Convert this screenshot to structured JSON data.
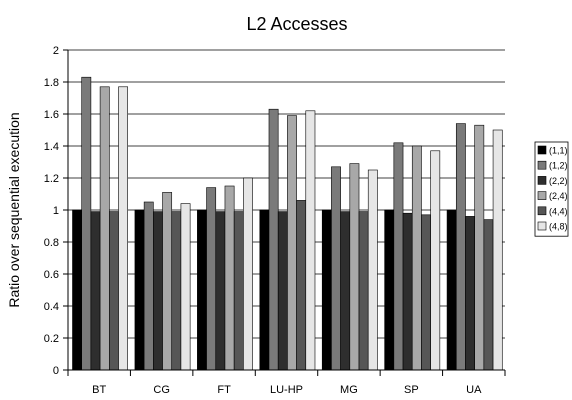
{
  "chart_data": {
    "type": "bar",
    "title": "L2 Accesses",
    "xlabel": "",
    "ylabel": "Ratio over sequential execution",
    "ylim": [
      0,
      2
    ],
    "yticks": [
      "0",
      "0.2",
      "0.4",
      "0.6",
      "0.8",
      "1",
      "1.2",
      "1.4",
      "1.6",
      "1.8",
      "2"
    ],
    "grid": true,
    "legend_position": "right",
    "categories": [
      "BT",
      "CG",
      "FT",
      "LU-HP",
      "MG",
      "SP",
      "UA"
    ],
    "series": [
      {
        "name": "(1,1)",
        "color": "#000000",
        "values": [
          1.0,
          1.0,
          1.0,
          1.0,
          1.0,
          1.0,
          1.0
        ]
      },
      {
        "name": "(1,2)",
        "color": "#7a7a7a",
        "values": [
          1.83,
          1.05,
          1.14,
          1.63,
          1.27,
          1.42,
          1.54
        ]
      },
      {
        "name": "(2,2)",
        "color": "#2e2e2e",
        "values": [
          0.99,
          0.99,
          0.99,
          0.99,
          0.99,
          0.98,
          0.96
        ]
      },
      {
        "name": "(2,4)",
        "color": "#a8a8a8",
        "values": [
          1.77,
          1.11,
          1.15,
          1.59,
          1.29,
          1.4,
          1.53
        ]
      },
      {
        "name": "(4,4)",
        "color": "#565656",
        "values": [
          0.99,
          0.99,
          0.99,
          1.06,
          0.99,
          0.97,
          0.94
        ]
      },
      {
        "name": "(4,8)",
        "color": "#e6e6e6",
        "values": [
          1.77,
          1.04,
          1.2,
          1.62,
          1.25,
          1.37,
          1.5
        ]
      }
    ]
  }
}
